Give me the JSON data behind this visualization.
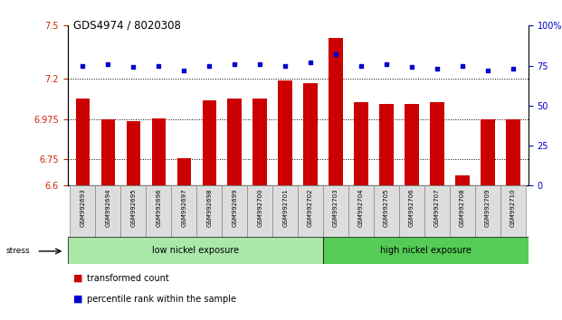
{
  "title": "GDS4974 / 8020308",
  "samples": [
    "GSM992693",
    "GSM992694",
    "GSM992695",
    "GSM992696",
    "GSM992697",
    "GSM992698",
    "GSM992699",
    "GSM992700",
    "GSM992701",
    "GSM992702",
    "GSM992703",
    "GSM992704",
    "GSM992705",
    "GSM992706",
    "GSM992707",
    "GSM992708",
    "GSM992709",
    "GSM992710"
  ],
  "bar_values": [
    7.09,
    6.975,
    6.965,
    6.98,
    6.755,
    7.08,
    7.09,
    7.09,
    7.19,
    7.175,
    7.43,
    7.07,
    7.06,
    7.06,
    7.07,
    6.66,
    6.975,
    6.975
  ],
  "dot_values": [
    75,
    76,
    74,
    75,
    72,
    75,
    76,
    76,
    75,
    77,
    82,
    75,
    76,
    74,
    73,
    75,
    72,
    73
  ],
  "bar_color": "#cc0000",
  "dot_color": "#0000cc",
  "ylim_left": [
    6.6,
    7.5
  ],
  "ylim_right": [
    0,
    100
  ],
  "yticks_left": [
    6.6,
    6.75,
    6.975,
    7.2,
    7.5
  ],
  "ytick_labels_left": [
    "6.6",
    "6.75",
    "6.975",
    "7.2",
    "7.5"
  ],
  "yticks_right": [
    0,
    25,
    50,
    75,
    100
  ],
  "ytick_labels_right": [
    "0",
    "25",
    "50",
    "75",
    "100%"
  ],
  "grid_values": [
    6.75,
    6.975,
    7.2
  ],
  "low_nickel_count": 10,
  "high_nickel_count": 8,
  "low_nickel_label": "low nickel exposure",
  "high_nickel_label": "high nickel exposure",
  "stress_label": "stress",
  "legend_bar_label": "transformed count",
  "legend_dot_label": "percentile rank within the sample",
  "bg_color": "#ffffff",
  "group_bg_low": "#aae8aa",
  "group_bg_high": "#55cc55",
  "tick_color_left": "#cc2200",
  "tick_color_right": "#0000cc"
}
